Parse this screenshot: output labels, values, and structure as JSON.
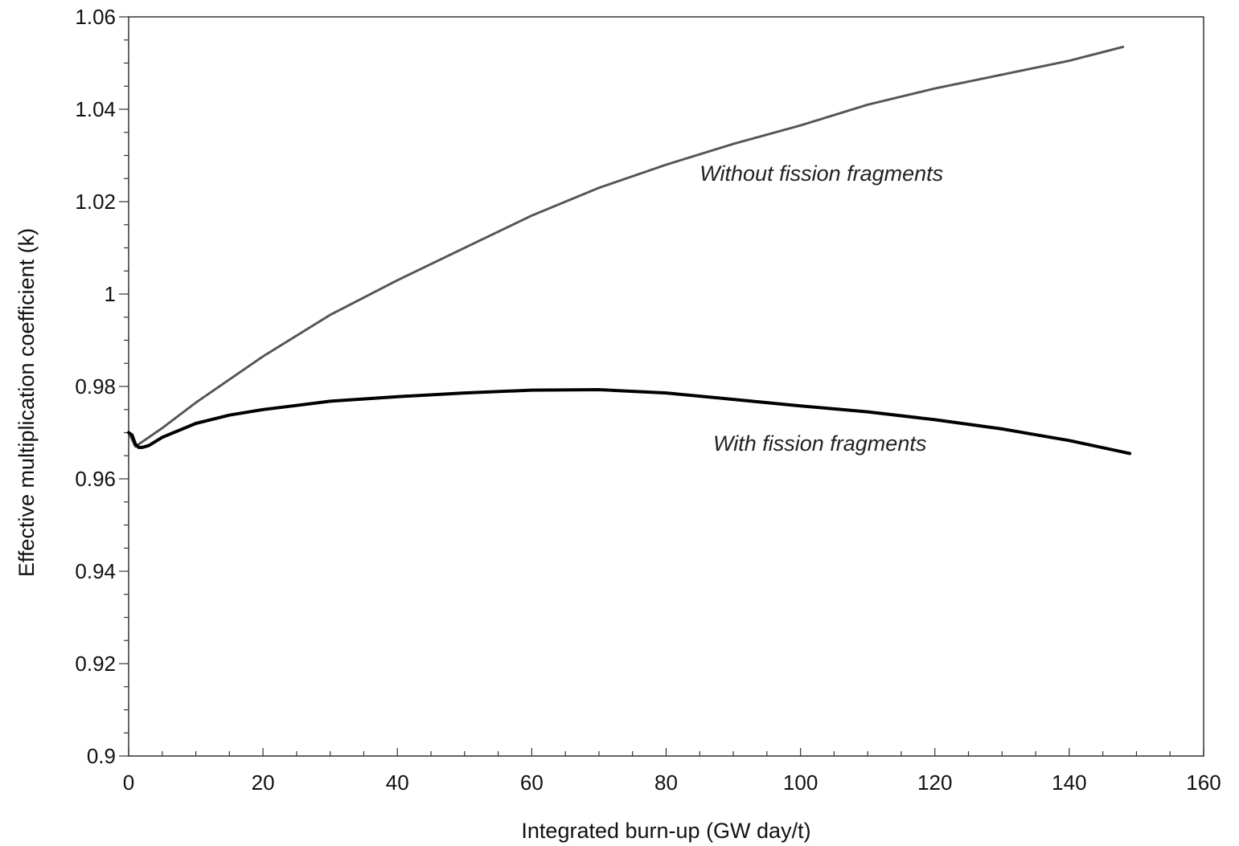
{
  "chart_data": {
    "type": "line",
    "title": "",
    "xlabel": "Integrated burn-up (GW day/t)",
    "ylabel": "Effective multiplication coefficient (k)",
    "xlim": [
      0,
      160
    ],
    "ylim": [
      0.9,
      1.06
    ],
    "x_ticks": [
      0,
      20,
      40,
      60,
      80,
      100,
      120,
      140,
      160
    ],
    "x_tick_labels": [
      "0",
      "20",
      "40",
      "60",
      "80",
      "100",
      "120",
      "140",
      "160"
    ],
    "y_ticks": [
      0.9,
      0.92,
      0.94,
      0.96,
      0.98,
      1.0,
      1.02,
      1.04,
      1.06
    ],
    "y_tick_labels": [
      "0.9",
      "0.92",
      "0.94",
      "0.96",
      "0.98",
      "1",
      "1.02",
      "1.04",
      "1.06"
    ],
    "grid": false,
    "legend": "none (curves labeled inline)",
    "series": [
      {
        "name": "Without fission fragments",
        "style": "dotted",
        "color": "#555555",
        "x": [
          0,
          1,
          5,
          10,
          20,
          30,
          40,
          50,
          60,
          70,
          80,
          90,
          100,
          110,
          120,
          130,
          140,
          148
        ],
        "y": [
          0.97,
          0.967,
          0.971,
          0.9765,
          0.9865,
          0.9955,
          1.003,
          1.01,
          1.017,
          1.023,
          1.028,
          1.0325,
          1.0365,
          1.041,
          1.0445,
          1.0475,
          1.0505,
          1.0535
        ]
      },
      {
        "name": "With fission fragments",
        "style": "solid",
        "color": "#000000",
        "x": [
          0,
          0.5,
          1,
          1.5,
          2,
          3,
          5,
          10,
          15,
          20,
          30,
          40,
          50,
          60,
          70,
          80,
          90,
          100,
          110,
          120,
          130,
          140,
          149
        ],
        "y": [
          0.97,
          0.9695,
          0.9675,
          0.9668,
          0.9668,
          0.9672,
          0.969,
          0.972,
          0.9738,
          0.975,
          0.9768,
          0.9778,
          0.9786,
          0.9792,
          0.9793,
          0.9786,
          0.9772,
          0.9758,
          0.9745,
          0.9728,
          0.9708,
          0.9683,
          0.9655
        ]
      }
    ],
    "annotations": [
      {
        "text": "Without fission fragments",
        "x": 85,
        "y": 1.0245
      },
      {
        "text": "With fission fragments",
        "x": 87,
        "y": 0.9661
      }
    ]
  }
}
